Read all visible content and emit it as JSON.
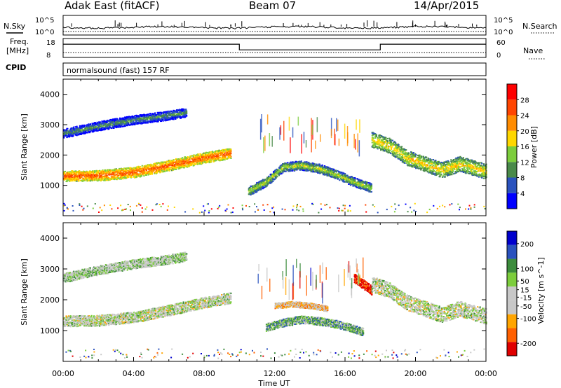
{
  "header": {
    "station": "Adak East (fitACF)",
    "beam": "Beam 07",
    "date": "14/Apr/2015"
  },
  "noise_panel": {
    "left_label": "N.Sky",
    "right_label": "N.Search",
    "left_ticks": [
      "10^5",
      "10^0"
    ],
    "right_ticks": [
      "10^5",
      "10^0"
    ]
  },
  "freq_panel": {
    "left_label_1": "Freq.",
    "left_label_2": "[MHz]",
    "right_label": "Nave",
    "left_ticks": [
      "18",
      "8"
    ],
    "right_ticks": [
      "60",
      "0"
    ],
    "cpid_label": "CPID",
    "cpid_text": "normalsound (fast) 157 RF"
  },
  "time_axis": {
    "ticks": [
      "00:00",
      "04:00",
      "08:00",
      "12:00",
      "16:00",
      "20:00",
      "00:00"
    ],
    "label": "Time UT"
  },
  "colors": {
    "power": [
      "#0000ff",
      "#2a52be",
      "#4a8a4a",
      "#7ccd3c",
      "#ffd700",
      "#ff8c00",
      "#ff4500",
      "#ff0000"
    ],
    "velocity": [
      "#e00000",
      "#ff6000",
      "#ffa500",
      "#c8c8c8",
      "#c8c8c8",
      "#7ccd3c",
      "#3c8c3c",
      "#2a52be",
      "#0000cd"
    ]
  },
  "chart_data": [
    {
      "type": "heatmap",
      "title": "",
      "xlabel": "",
      "ylabel": "Slant Range [km]",
      "xlim": [
        0,
        24
      ],
      "ylim": [
        0,
        4500
      ],
      "yticks": [
        1000,
        2000,
        3000,
        4000
      ],
      "colorbar": {
        "label": "Power [dB]",
        "ticks": [
          4,
          8,
          12,
          16,
          20,
          24,
          28
        ],
        "range": [
          0,
          32
        ]
      },
      "scatter_regions": [
        {
          "x": [
            0,
            2,
            4,
            6,
            8,
            9.5
          ],
          "y": [
            1300,
            1320,
            1420,
            1650,
            1900,
            2050
          ],
          "width_km": 350,
          "level": 0.65
        },
        {
          "x": [
            0,
            2,
            4,
            6,
            7
          ],
          "y": [
            2700,
            2950,
            3150,
            3300,
            3400
          ],
          "width_km": 300,
          "level": 0.2
        },
        {
          "x": [
            10.5,
            11.5,
            12.5,
            13.5,
            14.5,
            15.5,
            16.5,
            17.5
          ],
          "y": [
            800,
            1100,
            1600,
            1650,
            1550,
            1350,
            1100,
            900
          ],
          "width_km": 300,
          "level": 0.35
        },
        {
          "x": [
            17.5,
            18.5,
            19.5,
            20.5,
            21.5,
            22.5,
            24
          ],
          "y": [
            2500,
            2300,
            1900,
            1700,
            1500,
            1700,
            1450
          ],
          "width_km": 500,
          "level": 0.45
        }
      ]
    },
    {
      "type": "heatmap",
      "title": "",
      "xlabel": "Time UT",
      "ylabel": "Slant Range [km]",
      "xlim": [
        0,
        24
      ],
      "ylim": [
        0,
        4500
      ],
      "yticks": [
        1000,
        2000,
        3000,
        4000
      ],
      "colorbar": {
        "label": "Velocity [m s^-1]",
        "ticks": [
          -200,
          -100,
          -50,
          -15,
          15,
          50,
          100,
          200
        ],
        "range": [
          -250,
          250
        ]
      },
      "scatter_regions": [
        {
          "x": [
            0,
            2,
            4,
            6,
            8,
            9.5
          ],
          "y": [
            1300,
            1320,
            1420,
            1650,
            1900,
            2050
          ],
          "width_km": 350,
          "level": 0.5
        },
        {
          "x": [
            0,
            2,
            4,
            6,
            7
          ],
          "y": [
            2700,
            2950,
            3150,
            3300,
            3400
          ],
          "width_km": 300,
          "level": 0.55
        },
        {
          "x": [
            12.0,
            13.0,
            14.0,
            15.0
          ],
          "y": [
            1800,
            1850,
            1800,
            1700
          ],
          "width_km": 180,
          "level": 0.35
        },
        {
          "x": [
            11.5,
            12.5,
            13.5,
            14.5,
            15.5,
            16.5,
            17.0
          ],
          "y": [
            1100,
            1250,
            1350,
            1300,
            1200,
            1050,
            950
          ],
          "width_km": 250,
          "level": 0.65
        },
        {
          "x": [
            16.5,
            17.0,
            17.5
          ],
          "y": [
            2700,
            2500,
            2300
          ],
          "width_km": 300,
          "level": 0.05
        },
        {
          "x": [
            17.5,
            18.5,
            19.5,
            20.5,
            21.5,
            22.5,
            24
          ],
          "y": [
            2500,
            2300,
            1900,
            1700,
            1500,
            1700,
            1450
          ],
          "width_km": 500,
          "level": 0.5
        }
      ]
    },
    {
      "type": "line",
      "title": "",
      "series": [
        {
          "x": [
            0,
            10,
            10,
            18,
            18,
            24
          ],
          "values": [
            15,
            15,
            12,
            12,
            15,
            15
          ]
        }
      ]
    }
  ]
}
